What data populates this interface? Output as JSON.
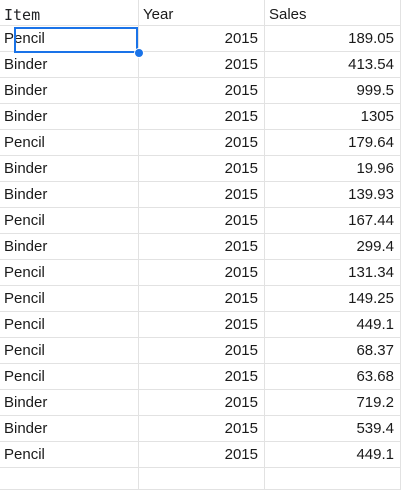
{
  "headers": [
    "Item",
    "Year",
    "Sales"
  ],
  "rows": [
    {
      "item": "Pencil",
      "year": "2015",
      "sales": "189.05"
    },
    {
      "item": "Binder",
      "year": "2015",
      "sales": "413.54"
    },
    {
      "item": "Binder",
      "year": "2015",
      "sales": "999.5"
    },
    {
      "item": "Binder",
      "year": "2015",
      "sales": "1305"
    },
    {
      "item": "Pencil",
      "year": "2015",
      "sales": "179.64"
    },
    {
      "item": "Binder",
      "year": "2015",
      "sales": "19.96"
    },
    {
      "item": "Binder",
      "year": "2015",
      "sales": "139.93"
    },
    {
      "item": "Pencil",
      "year": "2015",
      "sales": "167.44"
    },
    {
      "item": "Binder",
      "year": "2015",
      "sales": "299.4"
    },
    {
      "item": "Pencil",
      "year": "2015",
      "sales": "131.34"
    },
    {
      "item": "Pencil",
      "year": "2015",
      "sales": "149.25"
    },
    {
      "item": "Pencil",
      "year": "2015",
      "sales": "449.1"
    },
    {
      "item": "Pencil",
      "year": "2015",
      "sales": "68.37"
    },
    {
      "item": "Pencil",
      "year": "2015",
      "sales": "63.68"
    },
    {
      "item": "Binder",
      "year": "2015",
      "sales": "719.2"
    },
    {
      "item": "Binder",
      "year": "2015",
      "sales": "539.4"
    },
    {
      "item": "Pencil",
      "year": "2015",
      "sales": "449.1"
    }
  ],
  "selection": {
    "active_cell": "Pencil",
    "accent_color": "#1a73e8"
  },
  "colors": {
    "gridline": "#e2e2e2",
    "text": "#1a1a1a",
    "background": "#ffffff"
  }
}
